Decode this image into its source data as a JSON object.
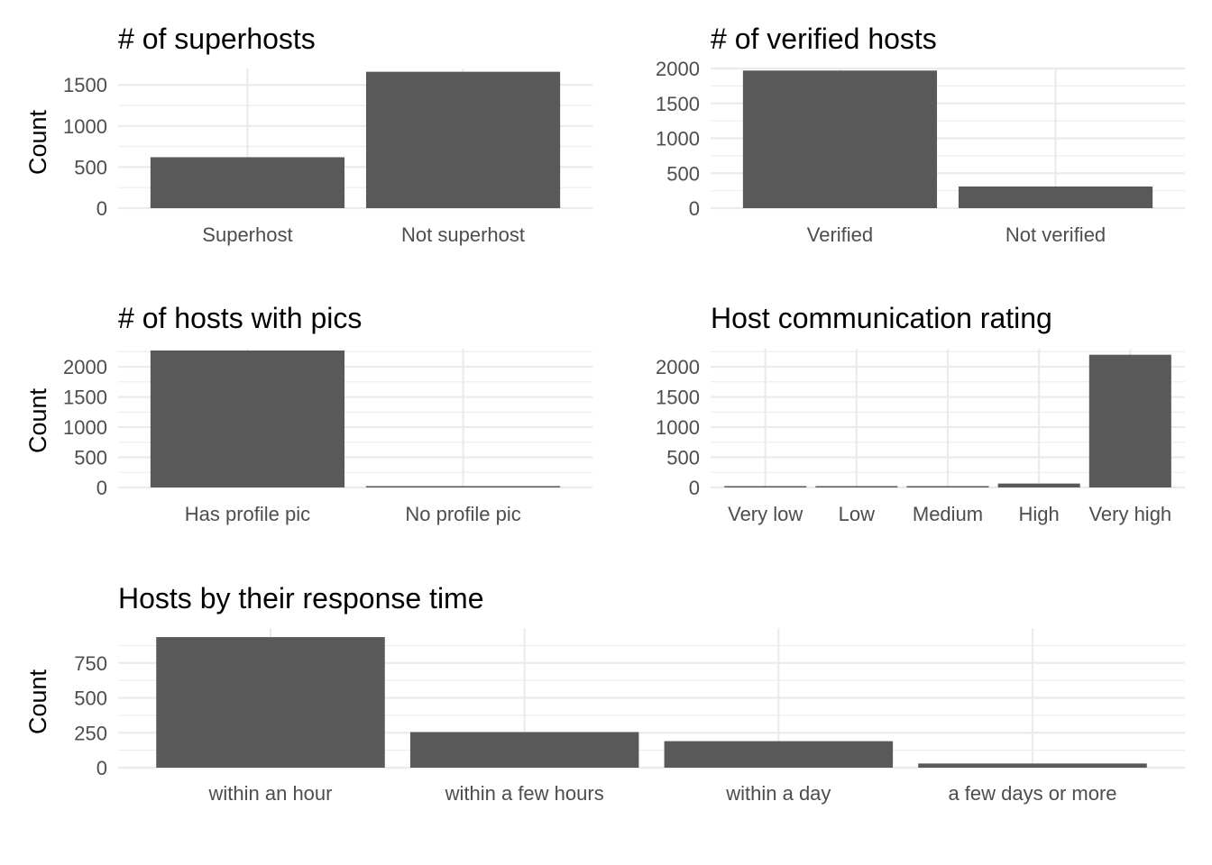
{
  "colors": {
    "bar": "#595959",
    "grid": "#ebebeb",
    "tick_text": "#4d4d4d",
    "title_text": "#000000",
    "background": "#ffffff"
  },
  "chart_data": [
    {
      "id": "superhosts",
      "type": "bar",
      "title": "# of superhosts",
      "ylabel": "Count",
      "categories": [
        "Superhost",
        "Not superhost"
      ],
      "values": [
        620,
        1660
      ],
      "ylim": [
        0,
        1700
      ],
      "yticks": [
        0,
        500,
        1000,
        1500
      ],
      "grid": true
    },
    {
      "id": "verified",
      "type": "bar",
      "title": "# of verified hosts",
      "ylabel": "",
      "categories": [
        "Verified",
        "Not verified"
      ],
      "values": [
        1970,
        310
      ],
      "ylim": [
        0,
        2000
      ],
      "yticks": [
        0,
        500,
        1000,
        1500,
        2000
      ],
      "grid": true
    },
    {
      "id": "pics",
      "type": "bar",
      "title": "# of hosts with pics",
      "ylabel": "Count",
      "categories": [
        "Has profile pic",
        "No profile pic"
      ],
      "values": [
        2270,
        15
      ],
      "ylim": [
        0,
        2300
      ],
      "yticks": [
        0,
        500,
        1000,
        1500,
        2000
      ],
      "grid": true
    },
    {
      "id": "communication",
      "type": "bar",
      "title": "Host communication rating",
      "ylabel": "",
      "categories": [
        "Very low",
        "Low",
        "Medium",
        "High",
        "Very high"
      ],
      "values": [
        5,
        3,
        5,
        65,
        2200
      ],
      "ylim": [
        0,
        2300
      ],
      "yticks": [
        0,
        500,
        1000,
        1500,
        2000
      ],
      "grid": true
    },
    {
      "id": "response",
      "type": "bar",
      "title": "Hosts by their response time",
      "ylabel": "Count",
      "categories": [
        "within an hour",
        "within a few hours",
        "within a day",
        "a few days or more"
      ],
      "values": [
        935,
        255,
        190,
        30
      ],
      "ylim": [
        0,
        1000
      ],
      "yticks": [
        0,
        250,
        500,
        750
      ],
      "grid": true
    }
  ]
}
